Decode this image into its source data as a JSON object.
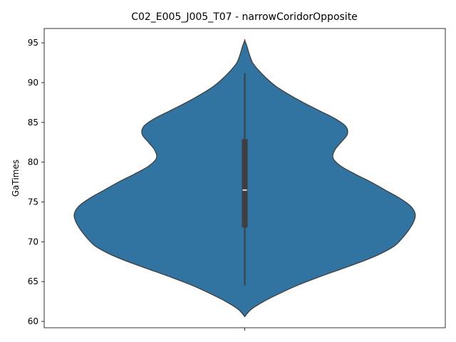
{
  "chart_data": {
    "type": "violin",
    "title": "C02_E005_J005_T07 - narrowCoridorOpposite",
    "xlabel": "",
    "ylabel": "GaTimes",
    "ylim": [
      59.2,
      96.8
    ],
    "yticks": [
      60,
      65,
      70,
      75,
      80,
      85,
      90,
      95
    ],
    "series": [
      {
        "color": "#3274a1",
        "density_profile": [
          [
            60.6,
            0.0
          ],
          [
            61.5,
            0.04
          ],
          [
            62.5,
            0.12
          ],
          [
            63.5,
            0.22
          ],
          [
            64.5,
            0.33
          ],
          [
            65.5,
            0.46
          ],
          [
            66.5,
            0.6
          ],
          [
            67.5,
            0.74
          ],
          [
            68.5,
            0.86
          ],
          [
            69.5,
            0.95
          ],
          [
            70.5,
            1.0
          ],
          [
            71.5,
            1.04
          ],
          [
            72.5,
            1.07
          ],
          [
            73.5,
            1.08
          ],
          [
            74.5,
            1.05
          ],
          [
            75.5,
            0.98
          ],
          [
            76.5,
            0.89
          ],
          [
            77.5,
            0.8
          ],
          [
            78.5,
            0.7
          ],
          [
            79.5,
            0.61
          ],
          [
            80.5,
            0.56
          ],
          [
            81.5,
            0.57
          ],
          [
            82.5,
            0.61
          ],
          [
            83.5,
            0.65
          ],
          [
            84.5,
            0.64
          ],
          [
            85.5,
            0.57
          ],
          [
            86.5,
            0.47
          ],
          [
            87.5,
            0.37
          ],
          [
            88.5,
            0.28
          ],
          [
            89.5,
            0.2
          ],
          [
            90.5,
            0.14
          ],
          [
            91.5,
            0.09
          ],
          [
            92.5,
            0.05
          ],
          [
            93.5,
            0.03
          ],
          [
            94.5,
            0.015
          ],
          [
            95.3,
            0.0
          ]
        ],
        "whisker_low": 64.5,
        "q1": 71.8,
        "median": 76.5,
        "q3": 82.9,
        "whisker_high": 91.2
      }
    ],
    "grid": false
  }
}
